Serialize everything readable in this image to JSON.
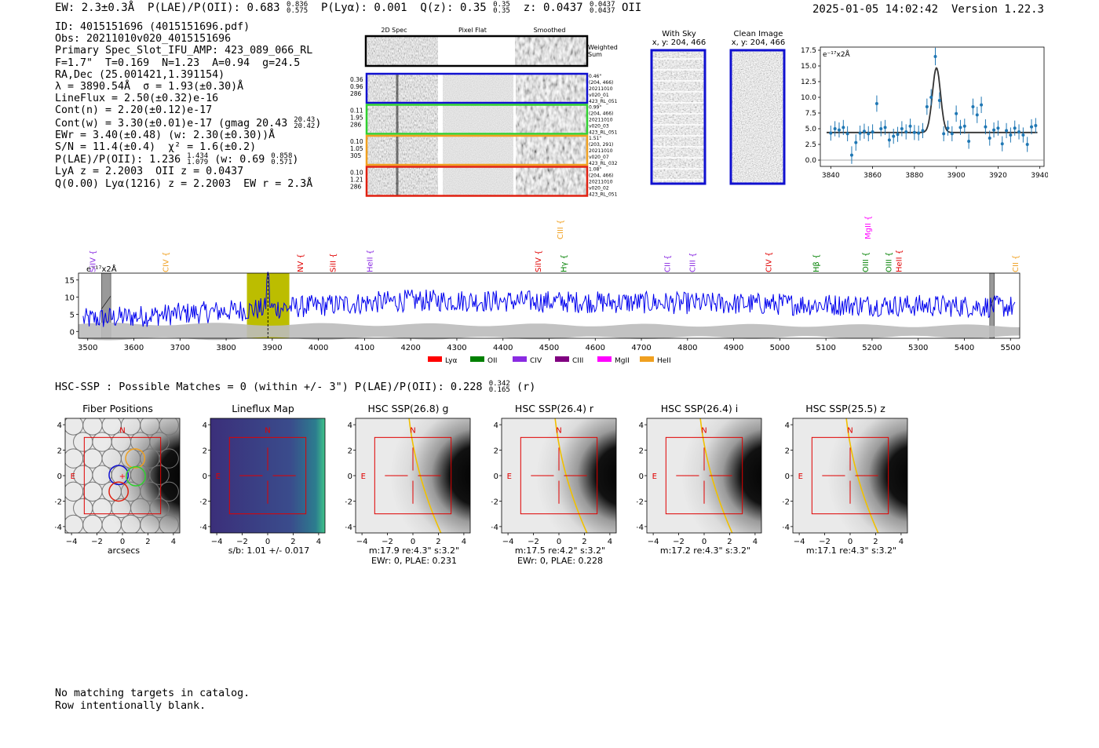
{
  "header": {
    "ew": "EW: 2.3±0.3Å",
    "plae_label": "P(LAE)/P(OII): 0.683",
    "plae_hi": "0.836",
    "plae_lo": "0.575",
    "plya": "P(Lyα): 0.001",
    "qz_label": "Q(z): 0.35",
    "qz_hi": "0.35",
    "qz_lo": "0.35",
    "z_label": "z: 0.0437",
    "z_hi": "0.0437",
    "z_lo": "0.0437",
    "z_line": "OII",
    "timestamp": "2025-01-05 14:02:42",
    "version": "Version 1.22.3"
  },
  "info": {
    "l1": "ID: 4015151696 (4015151696.pdf)",
    "l2": "Obs: 20211010v020_4015151696",
    "l3": "Primary Spec_Slot_IFU_AMP: 423_089_066_RL",
    "l4": "F=1.7\"  T=0.169  N=1.23  A=0.94  g=24.5",
    "l5": "RA,Dec (25.001421,1.391154)",
    "l6": "λ = 3890.54Å  σ = 1.93(±0.30)Å",
    "l7": "LineFlux = 2.50(±0.32)e-16",
    "l8": "Cont(n) = 2.20(±0.12)e-17",
    "l9": "Cont(w) = 3.30(±0.01)e-17 (gmag 20.43",
    "l9_hi": "20.43",
    "l9_lo": "20.42",
    "l9_end": ")",
    "l10": "EWr = 3.40(±0.48) (w: 2.30(±0.30))Å",
    "l11": "S/N = 11.4(±0.4)  χ² = 1.6(±0.2)",
    "l12": "P(LAE)/P(OII): 1.236",
    "l12_hi": "1.434",
    "l12_lo": "1.079",
    "l12_mid": " (w: 0.69",
    "l12_hi2": "0.858",
    "l12_lo2": "0.571",
    "l12_end": ")",
    "l13": "LyA z = 2.2003  OII z = 0.0437",
    "l14": "Q(0.00) Lyα(1216) z = 2.2003  EW r = 2.3Å"
  },
  "spec2d": {
    "col_headers": [
      "2D Spec",
      "Pixel Flat",
      "Smoothed"
    ],
    "weighted_label_1": "Weighted",
    "weighted_label_2": "Sum",
    "rows": [
      {
        "color": "#1010d0",
        "left": [
          "0.36",
          "0.96",
          "286"
        ],
        "right": [
          "0.46\"",
          "(204, 466)",
          "20211010",
          "v020_01",
          "423_RL_051"
        ]
      },
      {
        "color": "#30d030",
        "left": [
          "0.11",
          "1.95",
          "286"
        ],
        "right": [
          "0.99\"",
          "(204, 466)",
          "20211010",
          "v020_03",
          "423_RL_051"
        ]
      },
      {
        "color": "#f0a020",
        "left": [
          "0.10",
          "1.05",
          "305"
        ],
        "right": [
          "1.51\"",
          "(203, 291)",
          "20211010",
          "v020_07",
          "423_RL_032"
        ]
      },
      {
        "color": "#e02010",
        "left": [
          "0.10",
          "1.21",
          "286"
        ],
        "right": [
          "1.08\"",
          "(204, 466)",
          "20211010",
          "v020_02",
          "423_RL_051"
        ]
      }
    ]
  },
  "sky": {
    "title1": "With Sky",
    "coords1": "x, y: 204, 466",
    "title2": "Clean Image",
    "coords2": "x, y: 204, 466"
  },
  "chart_data": [
    {
      "type": "scatter",
      "title": "",
      "units_label": "e⁻¹⁷x2Å",
      "xlim": [
        3835,
        3942
      ],
      "ylim": [
        -1,
        18
      ],
      "xticks": [
        3840,
        3860,
        3880,
        3900,
        3920,
        3940
      ],
      "yticks": [
        0.0,
        2.5,
        5.0,
        7.5,
        10.0,
        12.5,
        15.0,
        17.5
      ],
      "x": [
        3840,
        3842,
        3844,
        3846,
        3848,
        3850,
        3852,
        3854,
        3856,
        3858,
        3860,
        3862,
        3864,
        3866,
        3868,
        3870,
        3872,
        3874,
        3876,
        3878,
        3880,
        3882,
        3884,
        3886,
        3888,
        3890,
        3892,
        3894,
        3896,
        3898,
        3900,
        3902,
        3904,
        3906,
        3908,
        3910,
        3912,
        3914,
        3916,
        3918,
        3920,
        3922,
        3924,
        3926,
        3928,
        3930,
        3932,
        3934,
        3936,
        3938
      ],
      "y": [
        4.3,
        5.0,
        4.8,
        5.2,
        4.2,
        0.8,
        2.8,
        4.3,
        4.6,
        4.2,
        4.5,
        9.0,
        5.0,
        5.2,
        3.2,
        3.8,
        4.1,
        5.0,
        4.5,
        5.4,
        4.4,
        4.3,
        4.7,
        8.5,
        10.0,
        16.5,
        9.5,
        4.2,
        5.1,
        4.2,
        7.4,
        5.2,
        5.4,
        3.0,
        8.5,
        7.2,
        8.8,
        5.3,
        3.5,
        4.8,
        5.1,
        2.6,
        4.7,
        4.0,
        5.1,
        4.5,
        4.0,
        2.5,
        5.3,
        5.5
      ],
      "err": [
        1.2,
        1.2,
        1.2,
        1.2,
        1.2,
        1.4,
        1.3,
        1.2,
        1.2,
        1.2,
        1.2,
        1.3,
        1.2,
        1.2,
        1.2,
        1.2,
        1.2,
        1.2,
        1.2,
        1.2,
        1.2,
        1.2,
        1.2,
        1.3,
        1.3,
        1.4,
        1.3,
        1.2,
        1.2,
        1.2,
        1.3,
        1.2,
        1.2,
        1.2,
        1.3,
        1.3,
        1.3,
        1.2,
        1.2,
        1.2,
        1.2,
        1.2,
        1.2,
        1.2,
        1.2,
        1.2,
        1.2,
        1.2,
        1.2,
        1.2
      ],
      "fit": {
        "continuum": 4.4,
        "amp": 10.3,
        "center": 3890.54,
        "sigma": 1.93
      }
    },
    {
      "type": "line",
      "units_label": "e⁻¹⁷x2Å",
      "xlim": [
        3480,
        5520
      ],
      "ylim": [
        -2,
        17
      ],
      "xticks": [
        3500,
        3600,
        3700,
        3800,
        3900,
        4000,
        4100,
        4200,
        4300,
        4400,
        4500,
        4600,
        4700,
        4800,
        4900,
        5000,
        5100,
        5200,
        5300,
        5400,
        5500
      ],
      "yticks": [
        0,
        5,
        10,
        15
      ],
      "highlight": [
        3845,
        3937
      ],
      "detection": 3890.54,
      "masked": [
        [
          3530,
          3550
        ],
        [
          5455,
          5465
        ]
      ],
      "lines": [
        {
          "name": "SiIV",
          "w": 3510,
          "color": "#8a2be2",
          "row": 1
        },
        {
          "name": "CIV",
          "w": 3668,
          "color": "#f0a020",
          "row": 1
        },
        {
          "name": "NV",
          "w": 3960,
          "color": "#e00000",
          "row": 1
        },
        {
          "name": "SiII",
          "w": 4030,
          "color": "#e00000",
          "row": 1
        },
        {
          "name": "HeII",
          "w": 4110,
          "color": "#8a2be2",
          "row": 1
        },
        {
          "name": "SiIV",
          "w": 4475,
          "color": "#e00000",
          "row": 1
        },
        {
          "name": "CIII",
          "w": 4523,
          "color": "#f0a020",
          "row": 0
        },
        {
          "name": "Hγ",
          "w": 4531,
          "color": "#008000",
          "row": 1
        },
        {
          "name": "CII",
          "w": 4755,
          "color": "#8a2be2",
          "row": 1
        },
        {
          "name": "CIII",
          "w": 4810,
          "color": "#8a2be2",
          "row": 1
        },
        {
          "name": "CIV",
          "w": 4975,
          "color": "#e00000",
          "row": 1
        },
        {
          "name": "Hβ",
          "w": 5078,
          "color": "#008000",
          "row": 1
        },
        {
          "name": "OIII",
          "w": 5185,
          "color": "#008000",
          "row": 1
        },
        {
          "name": "MgII",
          "w": 5190,
          "color": "#ff00ff",
          "row": 0
        },
        {
          "name": "OIII",
          "w": 5235,
          "color": "#008000",
          "row": 1
        },
        {
          "name": "HeII",
          "w": 5257,
          "color": "#e00000",
          "row": 1
        },
        {
          "name": "CII",
          "w": 5510,
          "color": "#f0a020",
          "row": 1
        }
      ],
      "legend": [
        {
          "name": "Lyα",
          "color": "#ff0000"
        },
        {
          "name": "OII",
          "color": "#008000"
        },
        {
          "name": "CIV",
          "color": "#8a2be2"
        },
        {
          "name": "CIII",
          "color": "#800080"
        },
        {
          "name": "MgII",
          "color": "#ff00ff"
        },
        {
          "name": "HeII",
          "color": "#f0a020"
        }
      ]
    }
  ],
  "hsc": {
    "header": "HSC-SSP : Possible Matches = 0 (within +/- 3\")  P(LAE)/P(OII): 0.228",
    "header_hi": "0.342",
    "header_lo": "0.165",
    "header_end": "(r)",
    "cutouts": [
      {
        "title": "Fiber Positions",
        "foot1": "arcsecs",
        "foot2": ""
      },
      {
        "title": "Lineflux Map",
        "foot1": "s/b: 1.01 +/- 0.017",
        "foot2": ""
      },
      {
        "title": "HSC SSP(26.8) g",
        "foot1": "m:17.9  re:4.3\"  s:3.2\"",
        "foot2": "EWr: 0, PLAE: 0.231"
      },
      {
        "title": "HSC SSP(26.4) r",
        "foot1": "m:17.5  re:4.2\"  s:3.2\"",
        "foot2": "EWr: 0, PLAE: 0.228"
      },
      {
        "title": "HSC SSP(26.4) i",
        "foot1": "m:17.2  re:4.3\"  s:3.2\"",
        "foot2": ""
      },
      {
        "title": "HSC SSP(25.5) z",
        "foot1": "m:17.1  re:4.3\"  s:3.2\"",
        "foot2": ""
      }
    ],
    "axis_ticks": [
      "−4",
      "−2",
      "0",
      "2",
      "4"
    ],
    "north": "N",
    "east": "E"
  },
  "footer": {
    "l1": "No matching targets in catalog.",
    "l2": "Row intentionally blank."
  }
}
